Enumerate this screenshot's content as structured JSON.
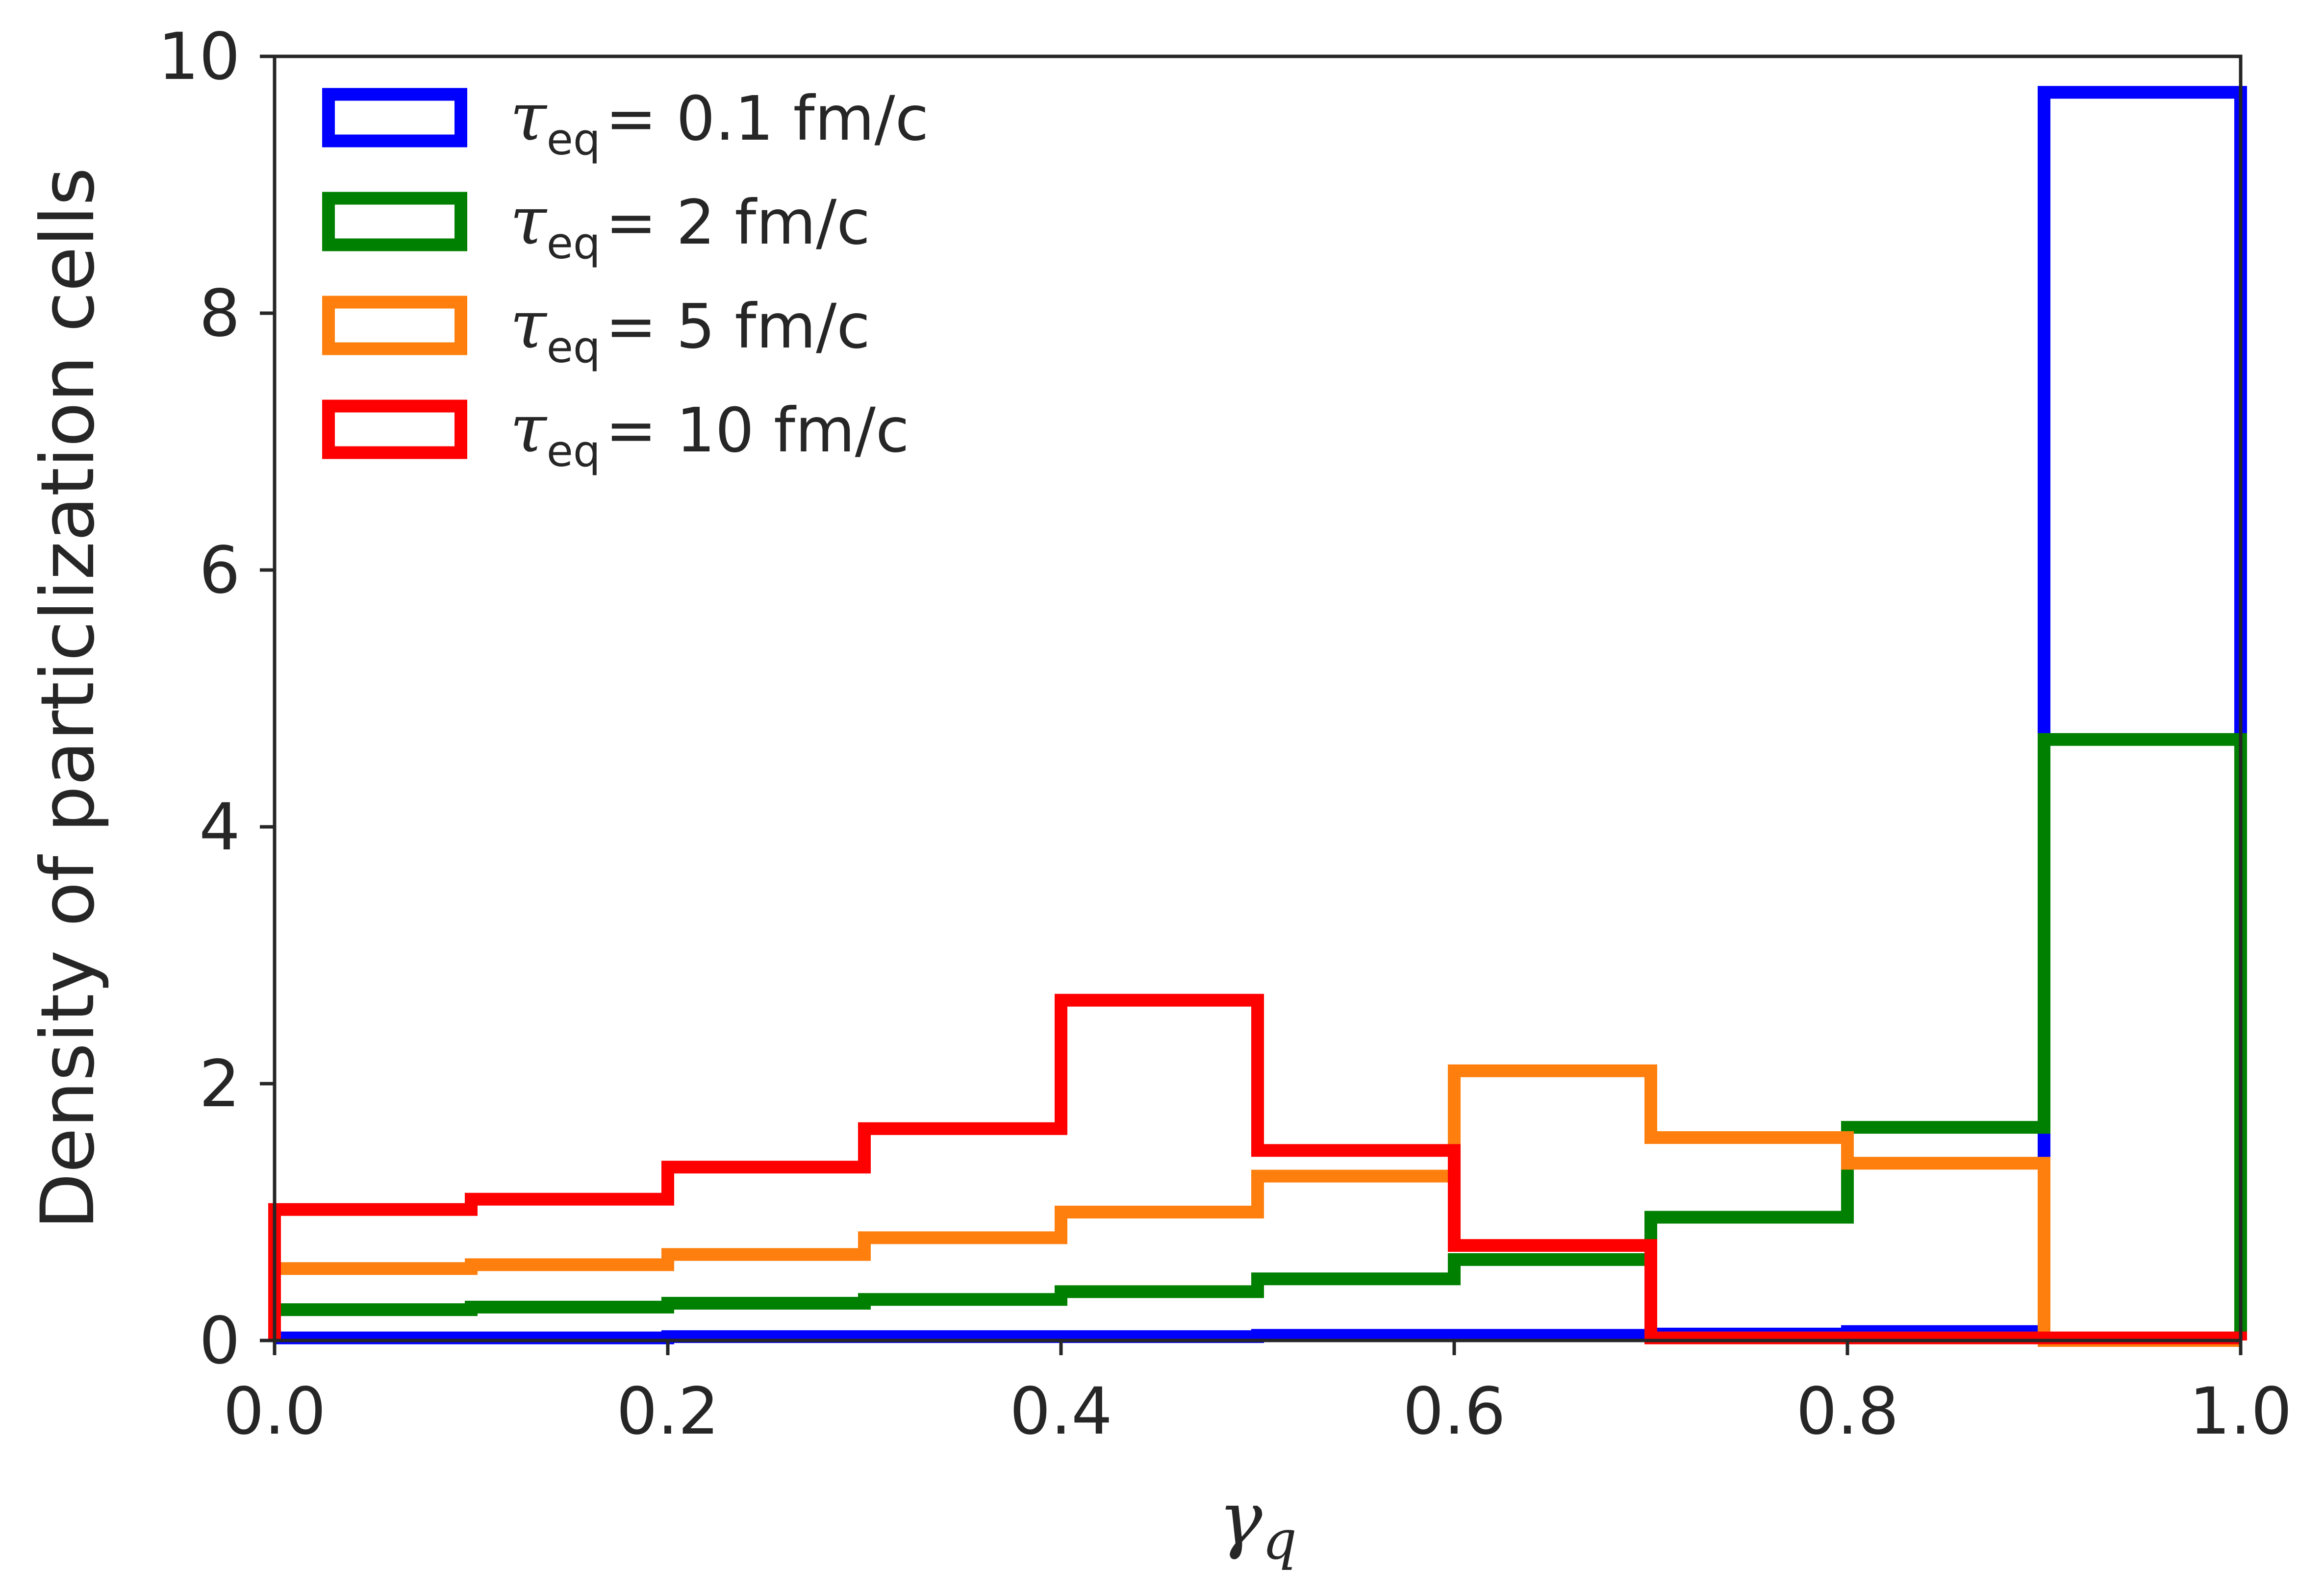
{
  "chart_data": {
    "type": "histogram",
    "title": "",
    "xlabel": "γ",
    "xlabel_subscript": "q",
    "ylabel": "Density of particlization cells",
    "xlim": [
      0.0,
      1.0
    ],
    "ylim": [
      0,
      10
    ],
    "xticks": [
      "0.0",
      "0.2",
      "0.4",
      "0.6",
      "0.8",
      "1.0"
    ],
    "xtick_values": [
      0.0,
      0.2,
      0.4,
      0.6,
      0.8,
      1.0
    ],
    "yticks": [
      "0",
      "2",
      "4",
      "6",
      "8",
      "10"
    ],
    "ytick_values": [
      0,
      2,
      4,
      6,
      8,
      10
    ],
    "grid": false,
    "legend_position": "top-left",
    "legend_symbol": "τ",
    "legend_subscript": "eq",
    "bin_edges": [
      0.0,
      0.1,
      0.2,
      0.3,
      0.4,
      0.5,
      0.6,
      0.7,
      0.8,
      0.9,
      1.0
    ],
    "series": [
      {
        "name": "τeq = 0.1 fm/c",
        "label_value": "= 0.1 fm/c",
        "color": "#0000ff",
        "values": [
          0.02,
          0.02,
          0.03,
          0.03,
          0.03,
          0.04,
          0.04,
          0.05,
          0.07,
          9.72
        ]
      },
      {
        "name": "τeq = 2 fm/c",
        "label_value": "= 2 fm/c",
        "color": "#008000",
        "values": [
          0.24,
          0.26,
          0.29,
          0.32,
          0.38,
          0.48,
          0.63,
          0.96,
          1.66,
          4.68
        ]
      },
      {
        "name": "τeq = 5 fm/c",
        "label_value": "= 5 fm/c",
        "color": "#ff7f0e",
        "values": [
          0.56,
          0.59,
          0.67,
          0.8,
          1.0,
          1.28,
          2.1,
          1.58,
          1.38,
          0.0
        ]
      },
      {
        "name": "τeq = 10 fm/c",
        "label_value": "= 10 fm/c",
        "color": "#ff0000",
        "values": [
          1.02,
          1.1,
          1.35,
          1.65,
          2.65,
          1.48,
          0.74,
          0.02,
          0.02,
          0.02
        ]
      }
    ]
  }
}
